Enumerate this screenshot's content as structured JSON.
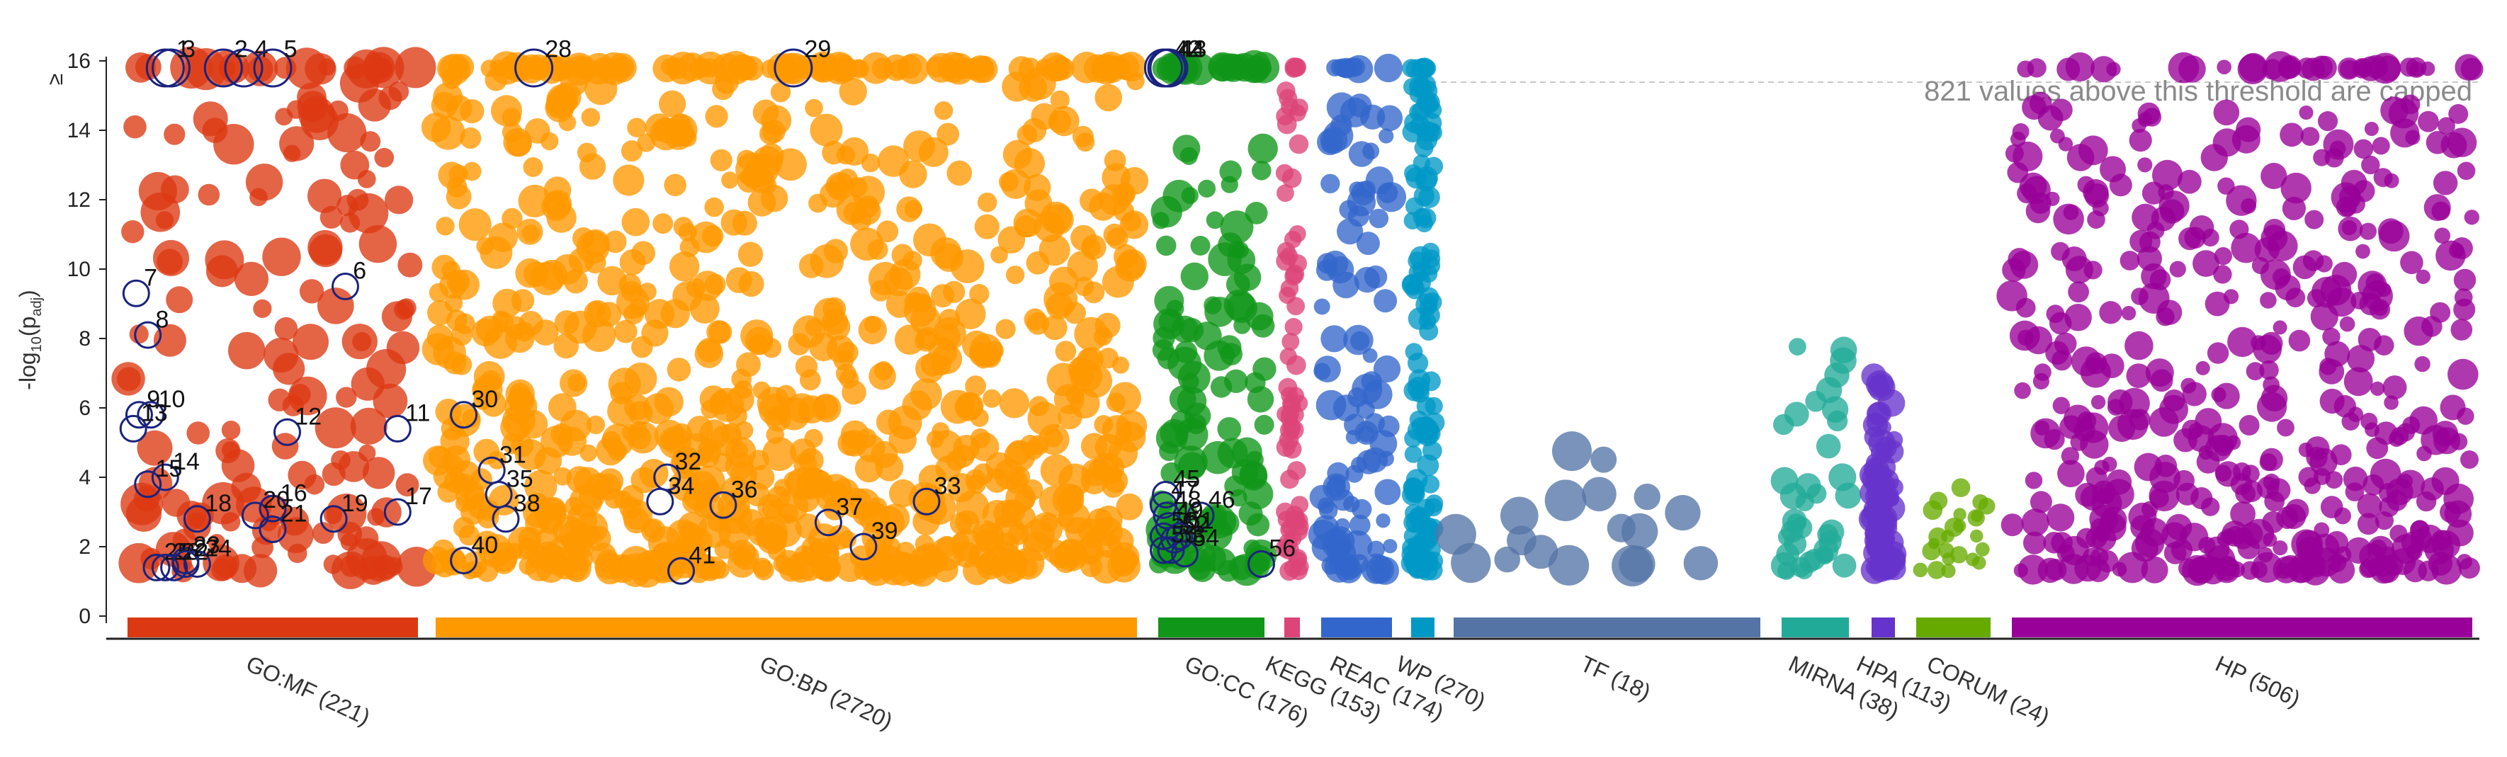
{
  "chart_data": {
    "type": "scatter",
    "title": "",
    "xlabel": "",
    "ylabel": {
      "prefix": "-log",
      "sub1": "10",
      "mid": "(p",
      "sub2": "adj",
      "suffix": ")"
    },
    "ylim": [
      0,
      16
    ],
    "yticks": [
      "0",
      "2",
      "4",
      "6",
      "8",
      "10",
      "12",
      "14",
      "16"
    ],
    "ycap_marker": "≥",
    "cap_note": "821 values above this threshold are capped",
    "sources": [
      {
        "name": "GO:MF",
        "label": "GO:MF (221)",
        "color": "#dc3912",
        "count": 221
      },
      {
        "name": "GO:BP",
        "label": "GO:BP (2720)",
        "color": "#ff9900",
        "count": 2720
      },
      {
        "name": "GO:CC",
        "label": "GO:CC (176)",
        "color": "#109618",
        "count": 176
      },
      {
        "name": "KEGG",
        "label": "KEGG (153)",
        "color": "#dd4477",
        "count": 153
      },
      {
        "name": "REAC",
        "label": "REAC (174)",
        "color": "#3366cc",
        "count": 174
      },
      {
        "name": "WP",
        "label": "WP (270)",
        "color": "#0099c6",
        "count": 270
      },
      {
        "name": "TF",
        "label": "TF (18)",
        "color": "#5574a6",
        "count": 18
      },
      {
        "name": "MIRNA",
        "label": "MIRNA (38)",
        "color": "#22aa99",
        "count": 38
      },
      {
        "name": "HPA",
        "label": "HPA (113)",
        "color": "#6633cc",
        "count": 113
      },
      {
        "name": "CORUM",
        "label": "CORUM (24)",
        "color": "#66aa00",
        "count": 24
      },
      {
        "name": "HP",
        "label": "HP (506)",
        "color": "#990099",
        "count": 506
      }
    ],
    "highlighted": [
      {
        "id": "1",
        "source": "GO:MF",
        "pos": 0.13,
        "y": 16
      },
      {
        "id": "3",
        "source": "GO:MF",
        "pos": 0.15,
        "y": 16
      },
      {
        "id": "2",
        "source": "GO:MF",
        "pos": 0.33,
        "y": 16
      },
      {
        "id": "4",
        "source": "GO:MF",
        "pos": 0.4,
        "y": 16
      },
      {
        "id": "5",
        "source": "GO:MF",
        "pos": 0.5,
        "y": 16
      },
      {
        "id": "6",
        "source": "GO:MF",
        "pos": 0.75,
        "y": 9.5
      },
      {
        "id": "7",
        "source": "GO:MF",
        "pos": 0.03,
        "y": 9.3
      },
      {
        "id": "8",
        "source": "GO:MF",
        "pos": 0.07,
        "y": 8.1
      },
      {
        "id": "9",
        "source": "GO:MF",
        "pos": 0.04,
        "y": 5.8
      },
      {
        "id": "10",
        "source": "GO:MF",
        "pos": 0.08,
        "y": 5.8
      },
      {
        "id": "11",
        "source": "GO:MF",
        "pos": 0.93,
        "y": 5.4
      },
      {
        "id": "12",
        "source": "GO:MF",
        "pos": 0.55,
        "y": 5.3
      },
      {
        "id": "13",
        "source": "GO:MF",
        "pos": 0.02,
        "y": 5.4
      },
      {
        "id": "14",
        "source": "GO:MF",
        "pos": 0.13,
        "y": 4.0
      },
      {
        "id": "15",
        "source": "GO:MF",
        "pos": 0.07,
        "y": 3.8
      },
      {
        "id": "16",
        "source": "GO:MF",
        "pos": 0.5,
        "y": 3.1
      },
      {
        "id": "17",
        "source": "GO:MF",
        "pos": 0.93,
        "y": 3.0
      },
      {
        "id": "18",
        "source": "GO:MF",
        "pos": 0.24,
        "y": 2.8
      },
      {
        "id": "19",
        "source": "GO:MF",
        "pos": 0.71,
        "y": 2.8
      },
      {
        "id": "20",
        "source": "GO:MF",
        "pos": 0.44,
        "y": 2.9
      },
      {
        "id": "21",
        "source": "GO:MF",
        "pos": 0.5,
        "y": 2.5
      },
      {
        "id": "22",
        "source": "GO:MF",
        "pos": 0.16,
        "y": 1.4
      },
      {
        "id": "23",
        "source": "GO:MF",
        "pos": 0.2,
        "y": 1.6
      },
      {
        "id": "24",
        "source": "GO:MF",
        "pos": 0.24,
        "y": 1.5
      },
      {
        "id": "25",
        "source": "GO:MF",
        "pos": 0.1,
        "y": 1.4
      },
      {
        "id": "26",
        "source": "GO:MF",
        "pos": 0.13,
        "y": 1.4
      },
      {
        "id": "27",
        "source": "GO:MF",
        "pos": 0.2,
        "y": 1.5
      },
      {
        "id": "28",
        "source": "GO:BP",
        "pos": 0.14,
        "y": 16
      },
      {
        "id": "29",
        "source": "GO:BP",
        "pos": 0.51,
        "y": 16
      },
      {
        "id": "30",
        "source": "GO:BP",
        "pos": 0.04,
        "y": 5.8
      },
      {
        "id": "31",
        "source": "GO:BP",
        "pos": 0.08,
        "y": 4.2
      },
      {
        "id": "32",
        "source": "GO:BP",
        "pos": 0.33,
        "y": 4.0
      },
      {
        "id": "33",
        "source": "GO:BP",
        "pos": 0.7,
        "y": 3.3
      },
      {
        "id": "34",
        "source": "GO:BP",
        "pos": 0.32,
        "y": 3.3
      },
      {
        "id": "35",
        "source": "GO:BP",
        "pos": 0.09,
        "y": 3.5
      },
      {
        "id": "36",
        "source": "GO:BP",
        "pos": 0.41,
        "y": 3.2
      },
      {
        "id": "37",
        "source": "GO:BP",
        "pos": 0.56,
        "y": 2.7
      },
      {
        "id": "38",
        "source": "GO:BP",
        "pos": 0.1,
        "y": 2.8
      },
      {
        "id": "39",
        "source": "GO:BP",
        "pos": 0.61,
        "y": 2.0
      },
      {
        "id": "40",
        "source": "GO:BP",
        "pos": 0.04,
        "y": 1.6
      },
      {
        "id": "41",
        "source": "GO:BP",
        "pos": 0.35,
        "y": 1.3
      },
      {
        "id": "42",
        "source": "GO:CC",
        "pos": 0.05,
        "y": 16
      },
      {
        "id": "43",
        "source": "GO:CC",
        "pos": 0.1,
        "y": 16
      },
      {
        "id": "44",
        "source": "GO:CC",
        "pos": 0.08,
        "y": 16
      },
      {
        "id": "45",
        "source": "GO:CC",
        "pos": 0.07,
        "y": 3.5
      },
      {
        "id": "46",
        "source": "GO:CC",
        "pos": 0.4,
        "y": 2.9
      },
      {
        "id": "47",
        "source": "GO:CC",
        "pos": 0.05,
        "y": 3.2
      },
      {
        "id": "48",
        "source": "GO:CC",
        "pos": 0.08,
        "y": 2.9
      },
      {
        "id": "49",
        "source": "GO:CC",
        "pos": 0.1,
        "y": 2.6
      },
      {
        "id": "50",
        "source": "GO:CC",
        "pos": 0.05,
        "y": 2.3
      },
      {
        "id": "51",
        "source": "GO:CC",
        "pos": 0.2,
        "y": 2.3
      },
      {
        "id": "52",
        "source": "GO:CC",
        "pos": 0.15,
        "y": 2.2
      },
      {
        "id": "53",
        "source": "GO:CC",
        "pos": 0.12,
        "y": 1.9
      },
      {
        "id": "54",
        "source": "GO:CC",
        "pos": 0.25,
        "y": 1.8
      },
      {
        "id": "55",
        "source": "GO:CC",
        "pos": 0.05,
        "y": 1.9
      },
      {
        "id": "56",
        "source": "GO:CC",
        "pos": 0.97,
        "y": 1.5
      }
    ]
  }
}
